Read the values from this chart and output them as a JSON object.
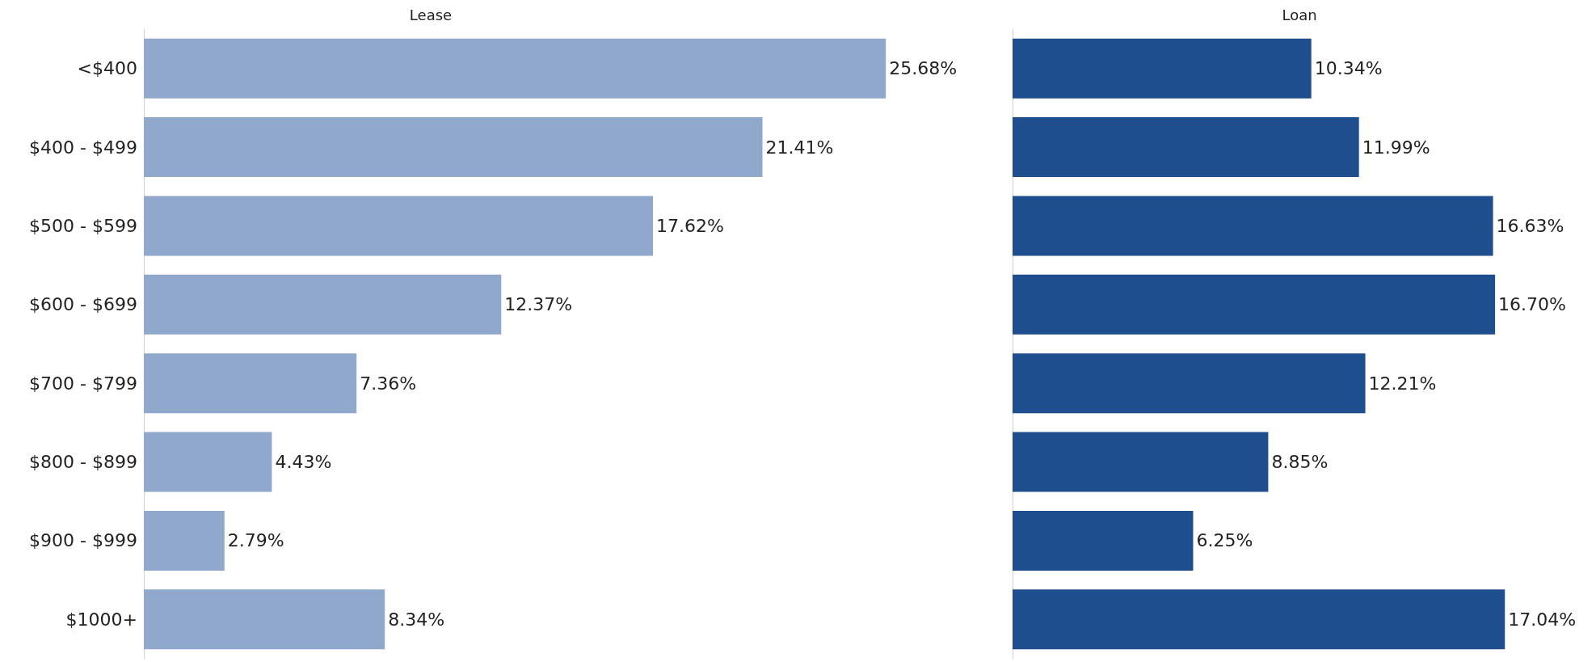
{
  "chart_data": [
    {
      "type": "bar",
      "orientation": "horizontal",
      "title": "Lease",
      "tick_labels": "y",
      "grid": false,
      "categories": [
        "<$400",
        "$400 - $499",
        "$500 - $599",
        "$600 - $699",
        "$700 - $799",
        "$800 - $899",
        "$900 - $999",
        "$1000+"
      ],
      "color": "#8fa8cc",
      "values": [
        25.68,
        21.41,
        17.62,
        12.37,
        7.36,
        4.43,
        2.79,
        8.34
      ],
      "value_labels": [
        "25.68%",
        "21.41%",
        "17.62%",
        "12.37%",
        "7.36%",
        "4.43%",
        "2.79%",
        "8.34%"
      ]
    },
    {
      "type": "bar",
      "orientation": "horizontal",
      "title": "Loan",
      "tick_labels": false,
      "grid": false,
      "categories": [
        null,
        null,
        null,
        null,
        null,
        null,
        null,
        null
      ],
      "color": "#1f4e8f",
      "values": [
        10.34,
        11.99,
        16.63,
        16.7,
        12.21,
        8.85,
        6.25,
        17.04
      ],
      "value_labels": [
        "10.34%",
        "11.99%",
        "16.63%",
        "16.70%",
        "12.21%",
        "8.85%",
        "6.25%",
        "17.04%"
      ]
    }
  ]
}
